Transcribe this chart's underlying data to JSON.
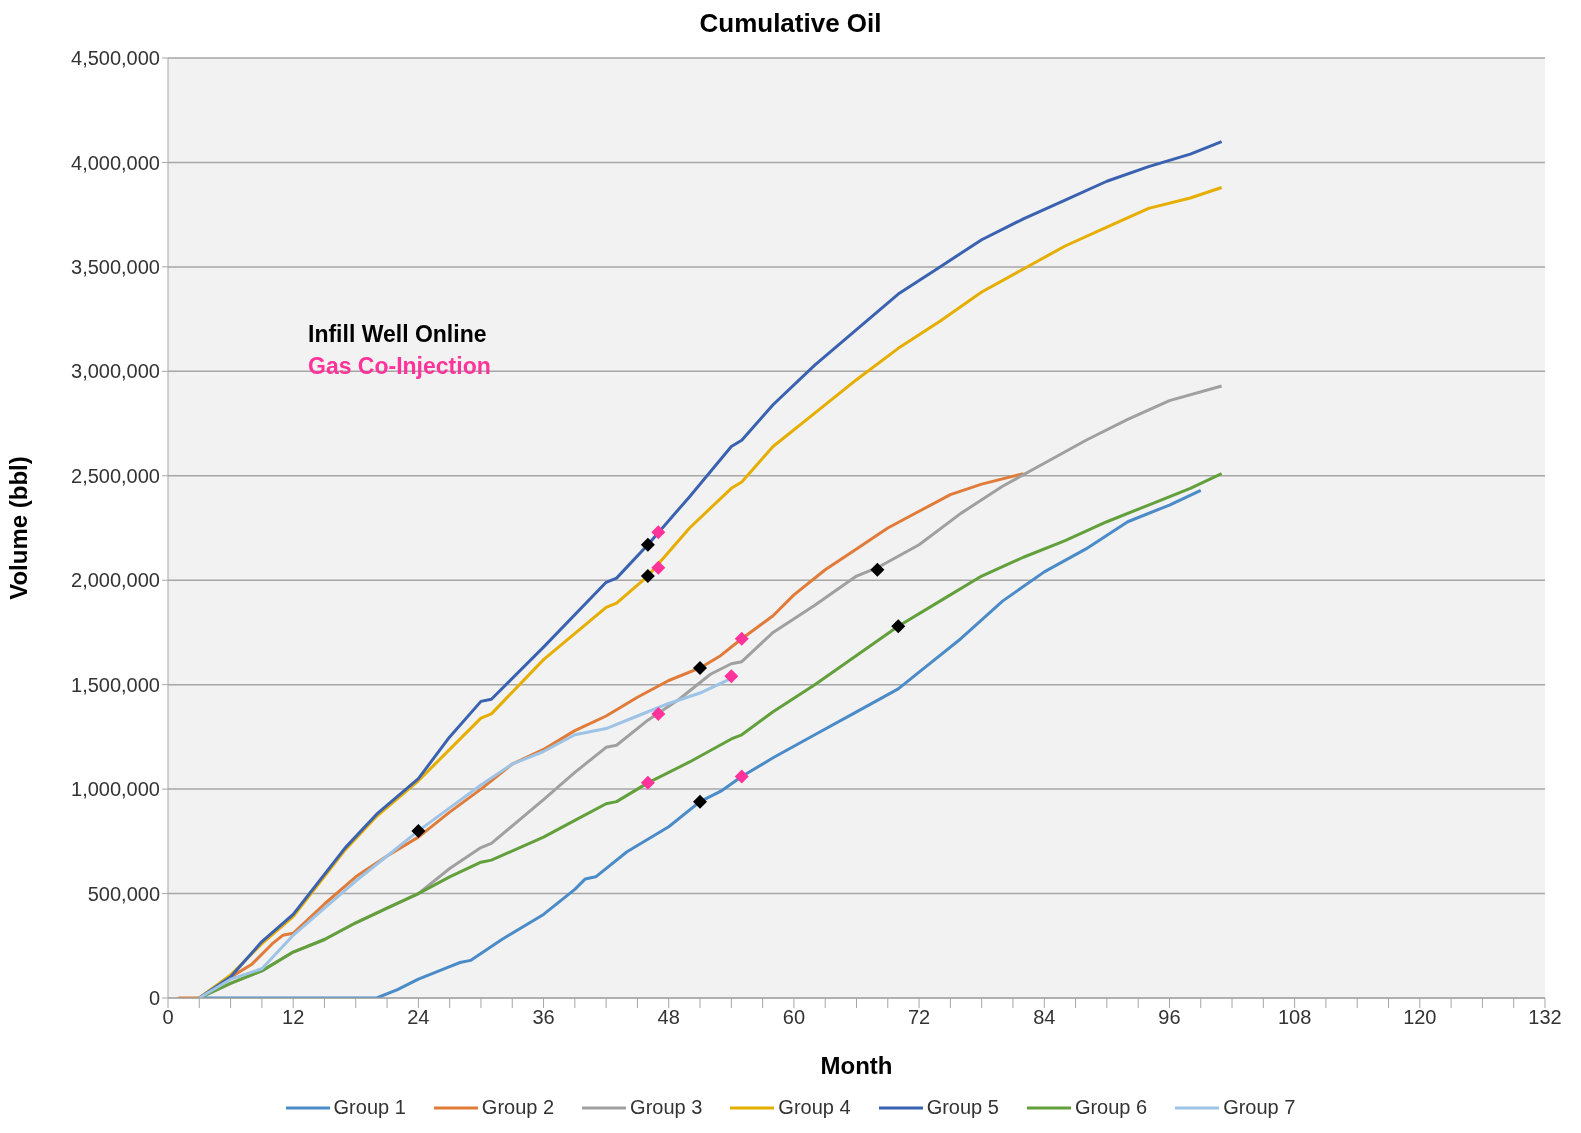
{
  "chart_data": {
    "type": "line",
    "title": "Cumulative Oil",
    "xlabel": "Month",
    "ylabel": "Volume (bbl)",
    "xlim": [
      0,
      132
    ],
    "xticks": [
      0,
      {
        "value": 3,
        "label": null
      },
      {
        "value": 6,
        "label": null
      },
      {
        "value": 9,
        "label": null
      },
      12,
      {
        "value": 15,
        "label": null
      },
      {
        "value": 18,
        "label": null
      },
      {
        "value": 21,
        "label": null
      },
      24,
      {
        "value": 27,
        "label": null
      },
      {
        "value": 30,
        "label": null
      },
      {
        "value": 33,
        "label": null
      },
      36,
      {
        "value": 39,
        "label": null
      },
      {
        "value": 42,
        "label": null
      },
      {
        "value": 45,
        "label": null
      },
      48,
      {
        "value": 51,
        "label": null
      },
      {
        "value": 54,
        "label": null
      },
      {
        "value": 57,
        "label": null
      },
      60,
      {
        "value": 63,
        "label": null
      },
      {
        "value": 66,
        "label": null
      },
      {
        "value": 69,
        "label": null
      },
      72,
      {
        "value": 75,
        "label": null
      },
      {
        "value": 78,
        "label": null
      },
      {
        "value": 81,
        "label": null
      },
      84,
      {
        "value": 87,
        "label": null
      },
      {
        "value": 90,
        "label": null
      },
      {
        "value": 93,
        "label": null
      },
      96,
      {
        "value": 99,
        "label": null
      },
      {
        "value": 102,
        "label": null
      },
      {
        "value": 105,
        "label": null
      },
      108,
      {
        "value": 111,
        "label": null
      },
      {
        "value": 114,
        "label": null
      },
      {
        "value": 117,
        "label": null
      },
      120,
      {
        "value": 123,
        "label": null
      },
      {
        "value": 126,
        "label": null
      },
      {
        "value": 129,
        "label": null
      },
      132
    ],
    "ylim": [
      0,
      4500000
    ],
    "yticks": [
      0,
      {
        "value": 500000,
        "label": "500,000"
      },
      {
        "value": 1000000,
        "label": "1,000,000"
      },
      {
        "value": 1500000,
        "label": "1,500,000"
      },
      {
        "value": 2000000,
        "label": "2,000,000"
      },
      {
        "value": 2500000,
        "label": "2,500,000"
      },
      {
        "value": 3000000,
        "label": "3,000,000"
      },
      {
        "value": 3500000,
        "label": "3,500,000"
      },
      {
        "value": 4000000,
        "label": "4,000,000"
      },
      {
        "value": 4500000,
        "label": "4,500,000"
      }
    ],
    "grid": "y",
    "legend": "bottom",
    "marker": "none",
    "line_style": "solid",
    "series": [
      {
        "name": "Group 1",
        "color": "#4a8bc8",
        "x": [
          3,
          20,
          22,
          24,
          27,
          28,
          29,
          32,
          36,
          39,
          40,
          41,
          44,
          48,
          51,
          53,
          55,
          58,
          62,
          66,
          70,
          72,
          76,
          80,
          84,
          88,
          92,
          96,
          99
        ],
        "values": [
          0,
          0,
          40000,
          90000,
          150000,
          170000,
          180000,
          280000,
          400000,
          520000,
          570000,
          580000,
          700000,
          820000,
          940000,
          990000,
          1060000,
          1150000,
          1260000,
          1370000,
          1480000,
          1560000,
          1720000,
          1900000,
          2040000,
          2150000,
          2280000,
          2360000,
          2430000
        ]
      },
      {
        "name": "Group 2",
        "color": "#e07b39",
        "x": [
          1,
          3,
          6,
          8,
          10,
          11,
          12,
          15,
          18,
          21,
          24,
          27,
          30,
          33,
          36,
          39,
          42,
          45,
          48,
          51,
          53,
          55,
          58,
          60,
          63,
          66,
          69,
          72,
          75,
          78,
          82
        ],
        "values": [
          0,
          0,
          100000,
          160000,
          260000,
          300000,
          310000,
          450000,
          580000,
          680000,
          770000,
          890000,
          1000000,
          1120000,
          1190000,
          1280000,
          1350000,
          1440000,
          1520000,
          1580000,
          1640000,
          1720000,
          1830000,
          1930000,
          2050000,
          2150000,
          2250000,
          2330000,
          2410000,
          2460000,
          2510000
        ]
      },
      {
        "name": "Group 3",
        "color": "#a0a0a0",
        "x": [
          3,
          6,
          9,
          12,
          15,
          18,
          21,
          24,
          27,
          30,
          31,
          36,
          39,
          42,
          43,
          46,
          49,
          52,
          54,
          55,
          58,
          62,
          66,
          68,
          72,
          76,
          80,
          84,
          88,
          92,
          96,
          101
        ],
        "values": [
          0,
          70000,
          130000,
          220000,
          280000,
          360000,
          430000,
          500000,
          620000,
          720000,
          740000,
          950000,
          1080000,
          1200000,
          1210000,
          1330000,
          1430000,
          1550000,
          1600000,
          1610000,
          1750000,
          1880000,
          2020000,
          2060000,
          2170000,
          2320000,
          2450000,
          2560000,
          2670000,
          2770000,
          2860000,
          2930000
        ]
      },
      {
        "name": "Group 4",
        "color": "#e6ae00",
        "x": [
          3,
          6,
          9,
          12,
          17,
          20,
          24,
          30,
          31,
          36,
          42,
          43,
          46,
          50,
          54,
          55,
          58,
          62,
          66,
          70,
          74,
          78,
          82,
          86,
          90,
          94,
          98,
          101
        ],
        "values": [
          0,
          110000,
          260000,
          390000,
          710000,
          870000,
          1040000,
          1340000,
          1360000,
          1620000,
          1870000,
          1890000,
          2020000,
          2250000,
          2440000,
          2470000,
          2640000,
          2800000,
          2960000,
          3110000,
          3240000,
          3380000,
          3490000,
          3600000,
          3690000,
          3780000,
          3830000,
          3880000
        ]
      },
      {
        "name": "Group 5",
        "color": "#3a62b0",
        "x": [
          3,
          6,
          9,
          12,
          17,
          20,
          24,
          27,
          30,
          31,
          36,
          42,
          43,
          46,
          50,
          54,
          55,
          58,
          62,
          66,
          70,
          74,
          78,
          82,
          86,
          90,
          94,
          98,
          101
        ],
        "values": [
          0,
          100000,
          270000,
          400000,
          720000,
          880000,
          1050000,
          1250000,
          1420000,
          1430000,
          1680000,
          1990000,
          2010000,
          2170000,
          2400000,
          2640000,
          2670000,
          2840000,
          3030000,
          3200000,
          3370000,
          3500000,
          3630000,
          3730000,
          3820000,
          3910000,
          3980000,
          4040000,
          4100000
        ]
      },
      {
        "name": "Group 6",
        "color": "#62a03c",
        "x": [
          3,
          6,
          9,
          12,
          15,
          18,
          21,
          24,
          27,
          30,
          31,
          36,
          39,
          42,
          43,
          46,
          50,
          54,
          55,
          58,
          62,
          66,
          70,
          74,
          78,
          82,
          86,
          90,
          94,
          98,
          101
        ],
        "values": [
          0,
          70000,
          130000,
          220000,
          280000,
          360000,
          430000,
          500000,
          580000,
          650000,
          660000,
          770000,
          850000,
          930000,
          940000,
          1030000,
          1130000,
          1240000,
          1260000,
          1370000,
          1500000,
          1640000,
          1780000,
          1900000,
          2020000,
          2110000,
          2190000,
          2280000,
          2360000,
          2440000,
          2510000
        ]
      },
      {
        "name": "Group 7",
        "color": "#9dc3e6",
        "x": [
          3,
          6,
          9,
          12,
          15,
          18,
          21,
          24,
          27,
          30,
          33,
          36,
          39,
          42,
          45,
          48,
          51,
          54
        ],
        "values": [
          0,
          90000,
          140000,
          300000,
          430000,
          560000,
          680000,
          800000,
          910000,
          1020000,
          1120000,
          1180000,
          1260000,
          1290000,
          1350000,
          1410000,
          1460000,
          1530000
        ]
      },
      {
        "name": "Infill Well Online",
        "type": "scatter",
        "marker": "diamond",
        "color": "#000000",
        "x": [
          24,
          46,
          46,
          51,
          51,
          68,
          70
        ],
        "values": [
          800000,
          2170000,
          2020000,
          1580000,
          940000,
          2050000,
          1780000
        ]
      },
      {
        "name": "Gas Co-Injection",
        "type": "scatter",
        "marker": "diamond",
        "color": "#ff3399",
        "x": [
          47,
          47,
          47,
          46,
          55,
          54,
          55
        ],
        "values": [
          2230000,
          2060000,
          1360000,
          1030000,
          1720000,
          1540000,
          1060000
        ]
      }
    ]
  }
}
